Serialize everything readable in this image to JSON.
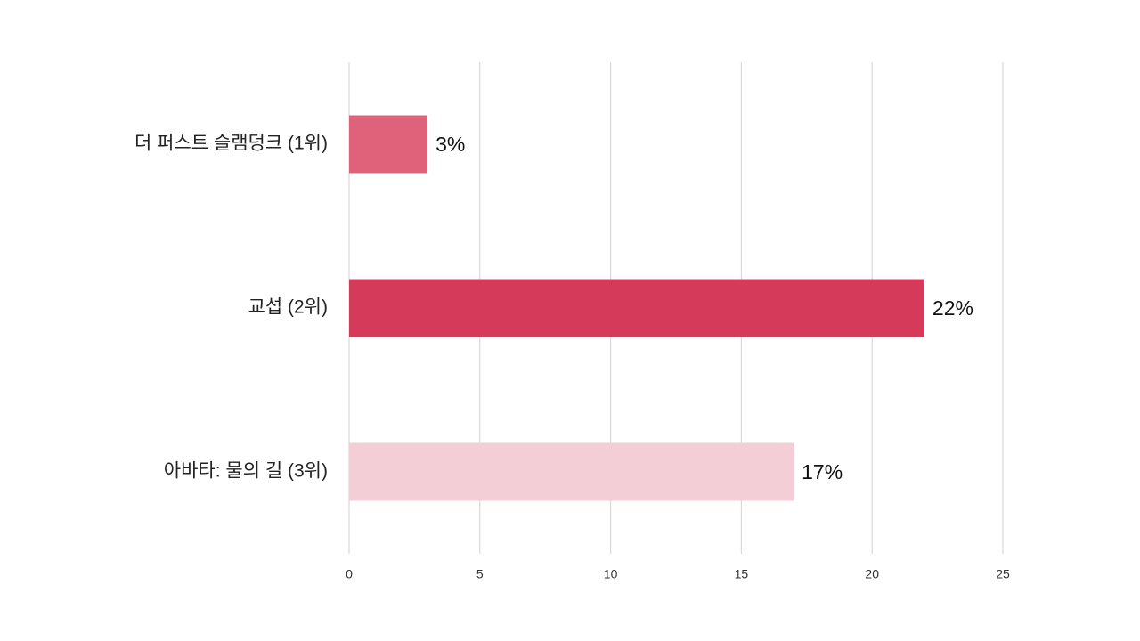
{
  "chart_data": {
    "type": "bar",
    "orientation": "horizontal",
    "categories": [
      "더 퍼스트 슬램덩크 (1위)",
      "교섭 (2위)",
      "아바타: 물의 길 (3위)"
    ],
    "values": [
      3,
      22,
      17
    ],
    "value_labels": [
      "3%",
      "22%",
      "17%"
    ],
    "colors": [
      "#e0627a",
      "#d63a5a",
      "#f4ced6"
    ],
    "xlim": [
      0,
      25
    ],
    "xticks": [
      0,
      5,
      10,
      15,
      20,
      25
    ],
    "grid": true
  }
}
